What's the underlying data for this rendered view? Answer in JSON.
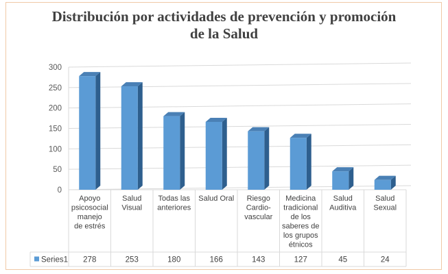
{
  "chart_data": {
    "type": "bar",
    "title": "Distribución por actividades de prevención y promoción de la Salud",
    "title_lines": [
      "Distribución por actividades de prevención y promoción",
      "de la Salud"
    ],
    "categories": [
      "Apoyo psicosocial manejo de estrés",
      "Salud Visual",
      "Todas las anteriores",
      "Salud Oral",
      "Riesgo Cardio-vascular",
      "Medicina tradicional de los saberes de los grupos étnicos",
      "Salud Auditiva",
      "Salud Sexual"
    ],
    "category_lines": [
      [
        "Apoyo",
        "psicosocial",
        "manejo",
        "de estrés"
      ],
      [
        "Salud",
        "Visual"
      ],
      [
        "Todas las",
        "anteriores"
      ],
      [
        "Salud Oral"
      ],
      [
        "Riesgo",
        "Cardio-",
        "vascular"
      ],
      [
        "Medicina",
        "tradicional",
        "de los",
        "saberes de",
        "los grupos",
        "étnicos"
      ],
      [
        "Salud",
        "Auditiva"
      ],
      [
        "Salud",
        "Sexual"
      ]
    ],
    "series": [
      {
        "name": "Series1",
        "values": [
          278,
          253,
          180,
          166,
          143,
          127,
          45,
          24
        ]
      }
    ],
    "ylim": [
      0,
      300
    ],
    "yticks": [
      0,
      50,
      100,
      150,
      200,
      250,
      300
    ],
    "grid": true,
    "legend": "data-table",
    "bar_style": "3d",
    "colors": {
      "front": "#5b9bd5",
      "side": "#2e5f8e",
      "top": "#4a80b5",
      "grid": "#d9d9d9"
    }
  }
}
